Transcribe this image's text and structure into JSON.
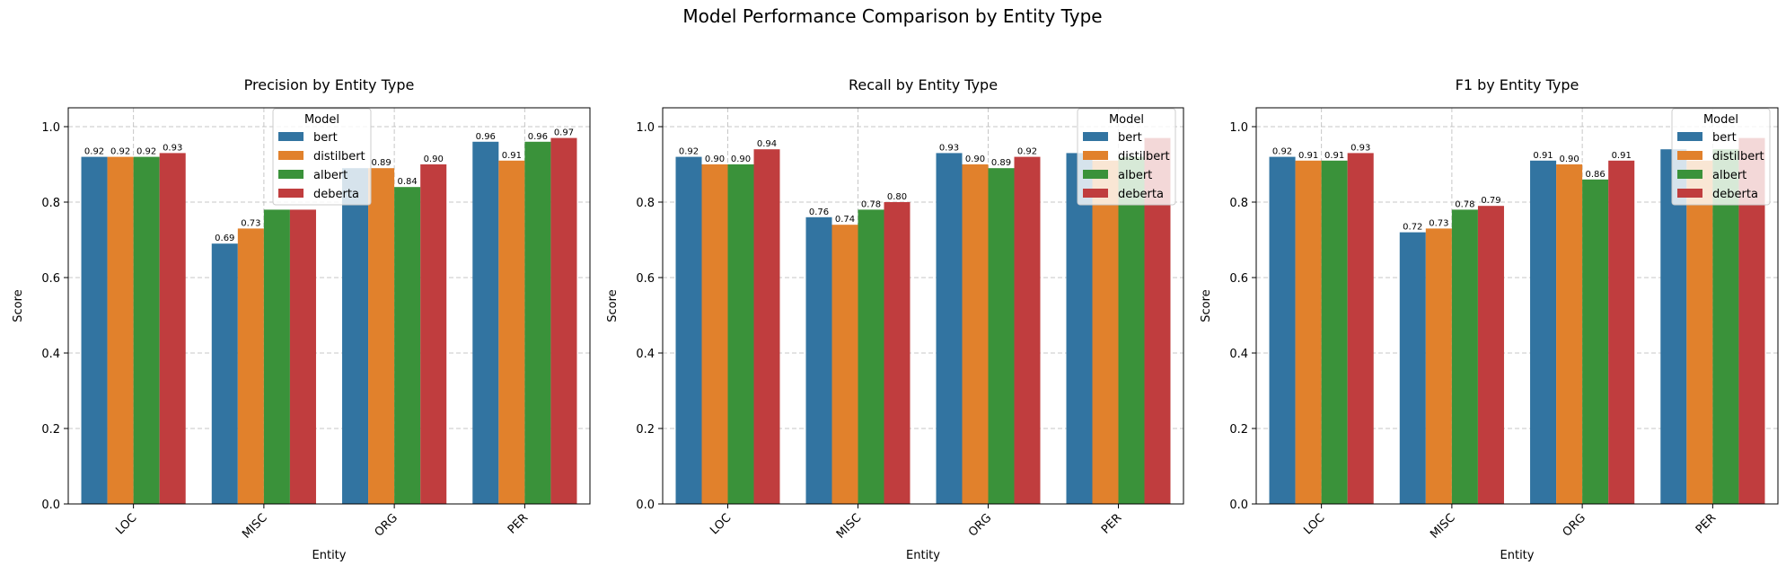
{
  "figure_title": "Model Performance Comparison by Entity Type",
  "chart_data": [
    {
      "type": "bar",
      "title": "Precision by Entity Type",
      "xlabel": "Entity",
      "ylabel": "Score",
      "ylim": [
        0,
        1.05
      ],
      "yticks": [
        "0.0",
        "0.2",
        "0.4",
        "0.6",
        "0.8",
        "1.0"
      ],
      "categories": [
        "LOC",
        "MISC",
        "ORG",
        "PER"
      ],
      "grid": true,
      "legend": {
        "title": "Model",
        "placement": "upper-center"
      },
      "series": [
        {
          "name": "bert",
          "color": "#3274a1",
          "values": [
            0.92,
            0.69,
            0.89,
            0.96
          ],
          "labels": [
            "0.92",
            "0.69",
            "",
            "0.96"
          ]
        },
        {
          "name": "distilbert",
          "color": "#e1812c",
          "values": [
            0.92,
            0.73,
            0.89,
            0.91
          ],
          "labels": [
            "0.92",
            "0.73",
            "0.89",
            "0.91"
          ]
        },
        {
          "name": "albert",
          "color": "#3a923a",
          "values": [
            0.92,
            0.78,
            0.84,
            0.96
          ],
          "labels": [
            "0.92",
            "",
            "0.84",
            "0.96"
          ]
        },
        {
          "name": "deberta",
          "color": "#c03d3e",
          "values": [
            0.93,
            0.78,
            0.9,
            0.97
          ],
          "labels": [
            "0.93",
            "",
            "0.90",
            "0.97"
          ]
        }
      ]
    },
    {
      "type": "bar",
      "title": "Recall by Entity Type",
      "xlabel": "Entity",
      "ylabel": "Score",
      "ylim": [
        0,
        1.05
      ],
      "yticks": [
        "0.0",
        "0.2",
        "0.4",
        "0.6",
        "0.8",
        "1.0"
      ],
      "categories": [
        "LOC",
        "MISC",
        "ORG",
        "PER"
      ],
      "grid": true,
      "legend": {
        "title": "Model",
        "placement": "upper-right"
      },
      "series": [
        {
          "name": "bert",
          "color": "#3274a1",
          "values": [
            0.92,
            0.76,
            0.93,
            0.93
          ],
          "labels": [
            "0.92",
            "0.76",
            "0.93",
            ""
          ]
        },
        {
          "name": "distilbert",
          "color": "#e1812c",
          "values": [
            0.9,
            0.74,
            0.9,
            0.91
          ],
          "labels": [
            "0.90",
            "0.74",
            "0.90",
            ""
          ]
        },
        {
          "name": "albert",
          "color": "#3a923a",
          "values": [
            0.9,
            0.78,
            0.89,
            0.92
          ],
          "labels": [
            "0.90",
            "0.78",
            "0.89",
            ""
          ]
        },
        {
          "name": "deberta",
          "color": "#c03d3e",
          "values": [
            0.94,
            0.8,
            0.92,
            0.97
          ],
          "labels": [
            "0.94",
            "0.80",
            "0.92",
            ""
          ]
        }
      ]
    },
    {
      "type": "bar",
      "title": "F1 by Entity Type",
      "xlabel": "Entity",
      "ylabel": "Score",
      "ylim": [
        0,
        1.05
      ],
      "yticks": [
        "0.0",
        "0.2",
        "0.4",
        "0.6",
        "0.8",
        "1.0"
      ],
      "categories": [
        "LOC",
        "MISC",
        "ORG",
        "PER"
      ],
      "grid": true,
      "legend": {
        "title": "Model",
        "placement": "upper-right"
      },
      "series": [
        {
          "name": "bert",
          "color": "#3274a1",
          "values": [
            0.92,
            0.72,
            0.91,
            0.94
          ],
          "labels": [
            "0.92",
            "0.72",
            "0.91",
            ""
          ]
        },
        {
          "name": "distilbert",
          "color": "#e1812c",
          "values": [
            0.91,
            0.73,
            0.9,
            0.91
          ],
          "labels": [
            "0.91",
            "0.73",
            "0.90",
            ""
          ]
        },
        {
          "name": "albert",
          "color": "#3a923a",
          "values": [
            0.91,
            0.78,
            0.86,
            0.94
          ],
          "labels": [
            "0.91",
            "0.78",
            "0.86",
            ""
          ]
        },
        {
          "name": "deberta",
          "color": "#c03d3e",
          "values": [
            0.93,
            0.79,
            0.91,
            0.97
          ],
          "labels": [
            "0.93",
            "0.79",
            "0.91",
            ""
          ]
        }
      ]
    }
  ]
}
